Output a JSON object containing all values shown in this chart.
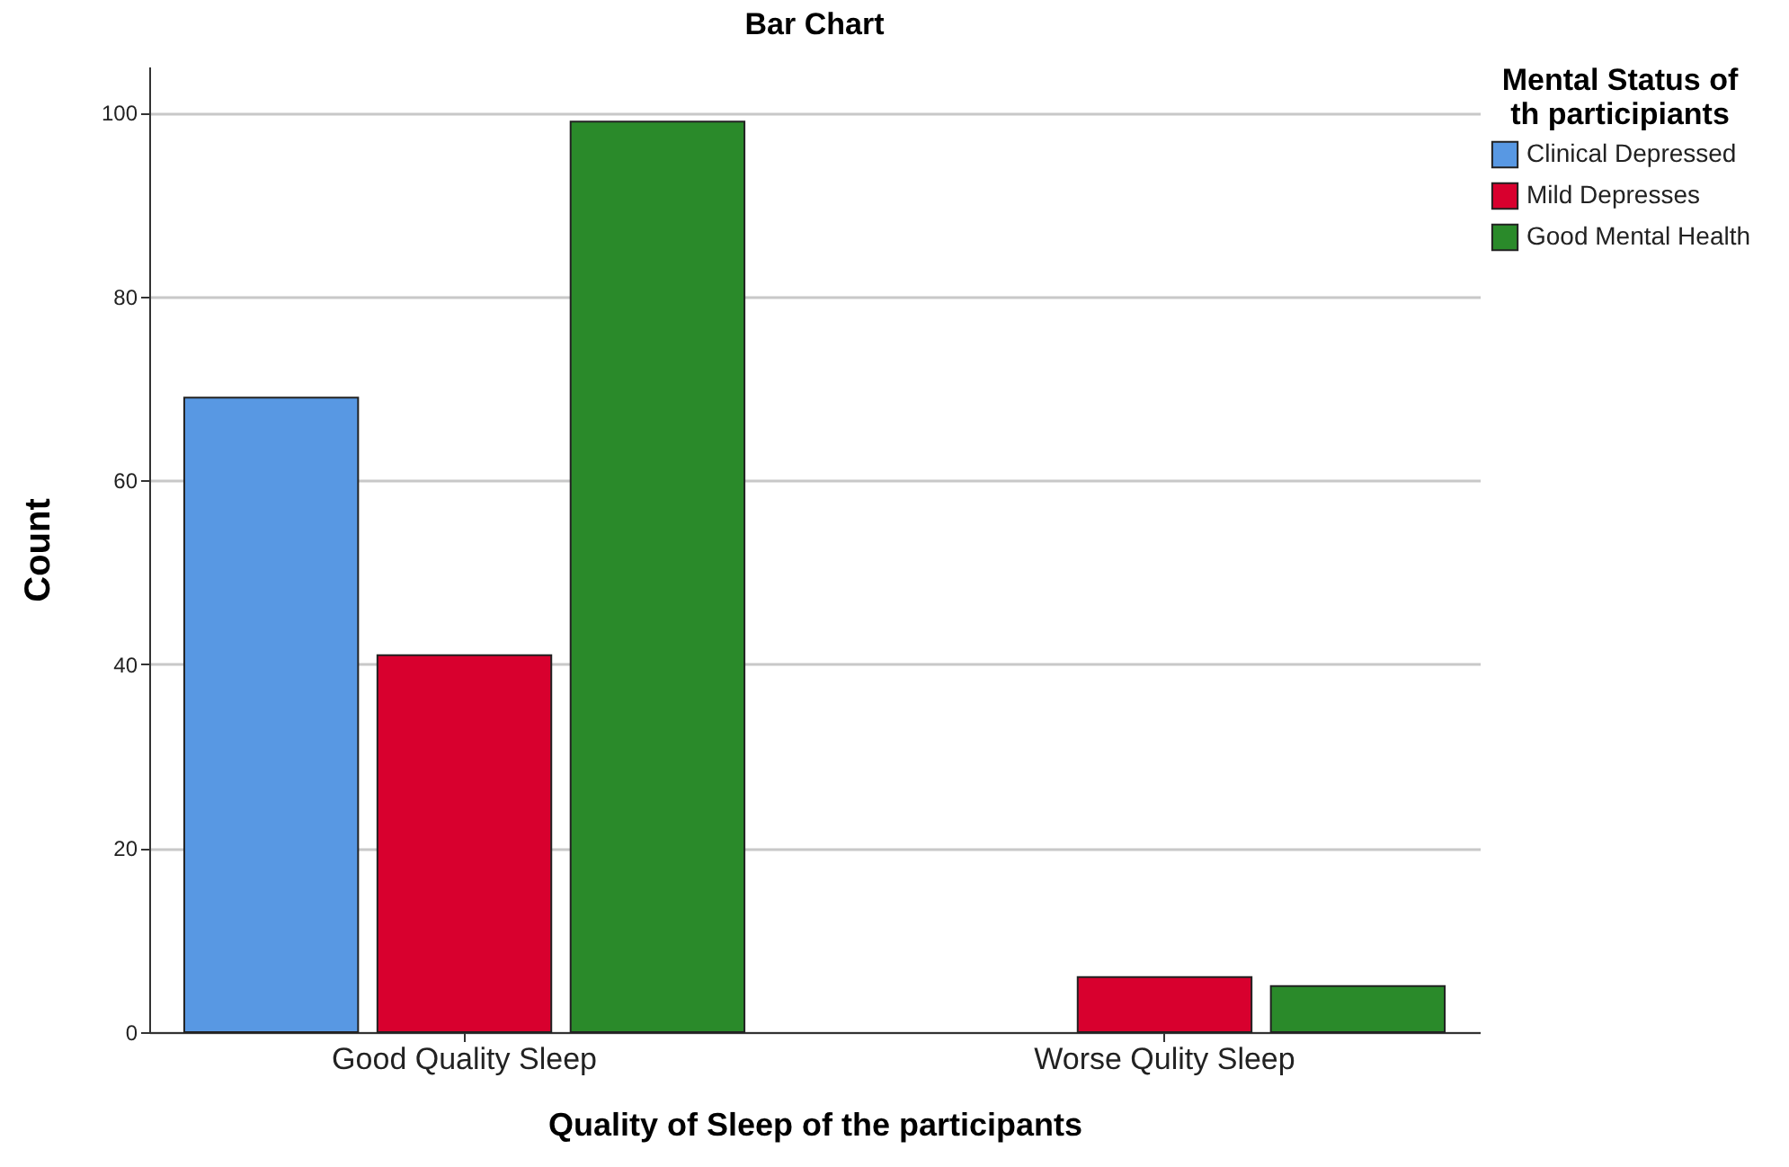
{
  "chart_data": {
    "type": "bar",
    "title": "Bar Chart",
    "xlabel": "Quality of Sleep of the participants",
    "ylabel": "Count",
    "legend_title": "Mental Status of th participiants",
    "categories": [
      "Good Quality Sleep",
      "Worse Qulity Sleep"
    ],
    "series": [
      {
        "name": "Clinical Depressed",
        "color": "#5898e3",
        "values": [
          69,
          null
        ]
      },
      {
        "name": "Mild Depresses",
        "color": "#d8002e",
        "values": [
          41,
          6
        ]
      },
      {
        "name": "Good Mental Health",
        "color": "#2a8a2a",
        "values": [
          99,
          5
        ]
      }
    ],
    "ylim": [
      0,
      105
    ],
    "yticks": [
      0,
      20,
      40,
      60,
      80,
      100
    ],
    "grid": "y",
    "legend": "top right"
  }
}
